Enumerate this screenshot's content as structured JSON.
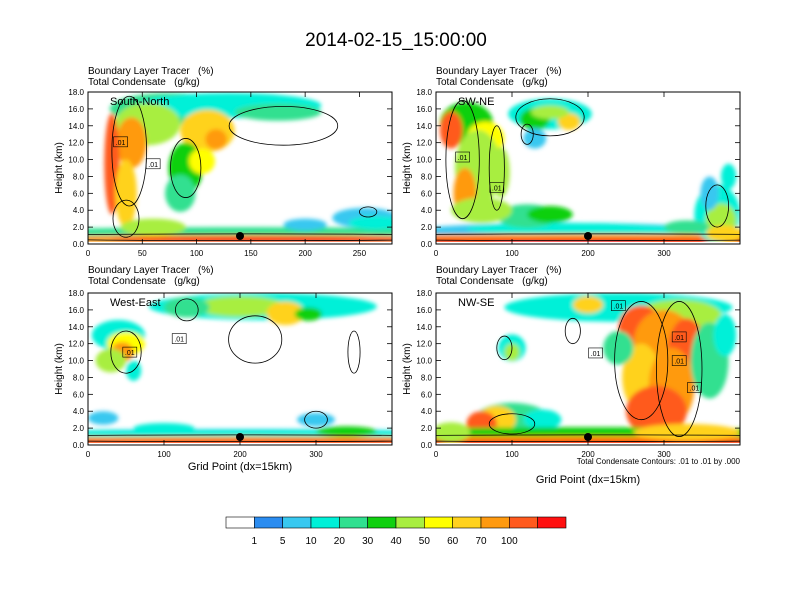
{
  "title": "2014-02-15_15:00:00",
  "panel_left_label": "Boundary Layer Tracer   (%)",
  "panel_right_label": "Total Condensate   (g/kg)",
  "ylabel": "Height (km)",
  "xlabel": "Grid Point (dx=15km)",
  "contour_note": "Total Condensate Contours: .01 to .01 by .000",
  "colorbar": {
    "labels": [
      "1",
      "5",
      "10",
      "20",
      "30",
      "40",
      "50",
      "60",
      "70",
      "100"
    ],
    "colors": [
      "#ffffff",
      "#2b8cf0",
      "#38c8f0",
      "#00f0d8",
      "#30e090",
      "#10d010",
      "#a8ee40",
      "#ffff00",
      "#ffd21e",
      "#ff9a10",
      "#ff5a1e",
      "#ff1010"
    ]
  },
  "chart_data": [
    {
      "type": "heatmap",
      "name": "South-North",
      "title": "South-North",
      "xlim": [
        0,
        280
      ],
      "xticks": [
        0,
        50,
        100,
        150,
        200,
        250
      ],
      "ylim": [
        0,
        18
      ],
      "yticks": [
        0.0,
        2.0,
        4.0,
        6.0,
        8.0,
        10.0,
        12.0,
        14.0,
        16.0,
        18.0
      ],
      "marker_x": 140,
      "contour_labels": [
        ".01",
        ".01"
      ]
    },
    {
      "type": "heatmap",
      "name": "SW-NE",
      "title": "SW-NE",
      "xlim": [
        0,
        400
      ],
      "xticks": [
        0,
        100,
        200,
        300
      ],
      "ylim": [
        0,
        18
      ],
      "yticks": [
        0.0,
        2.0,
        4.0,
        6.0,
        8.0,
        10.0,
        12.0,
        14.0,
        16.0,
        18.0
      ],
      "marker_x": 200,
      "contour_labels": [
        ".01",
        ".01"
      ]
    },
    {
      "type": "heatmap",
      "name": "West-East",
      "title": "West-East",
      "xlim": [
        0,
        400
      ],
      "xticks": [
        0,
        100,
        200,
        300
      ],
      "ylim": [
        0,
        18
      ],
      "yticks": [
        0.0,
        2.0,
        4.0,
        6.0,
        8.0,
        10.0,
        12.0,
        14.0,
        16.0,
        18.0
      ],
      "marker_x": 200,
      "contour_labels": [
        ".01",
        ".01"
      ]
    },
    {
      "type": "heatmap",
      "name": "NW-SE",
      "title": "NW-SE",
      "xlim": [
        0,
        400
      ],
      "xticks": [
        0,
        100,
        200,
        300
      ],
      "ylim": [
        0,
        18
      ],
      "yticks": [
        0.0,
        2.0,
        4.0,
        6.0,
        8.0,
        10.0,
        12.0,
        14.0,
        16.0,
        18.0
      ],
      "marker_x": 200,
      "contour_labels": [
        ".01",
        ".01",
        ".01",
        ".01",
        ".01"
      ]
    }
  ]
}
